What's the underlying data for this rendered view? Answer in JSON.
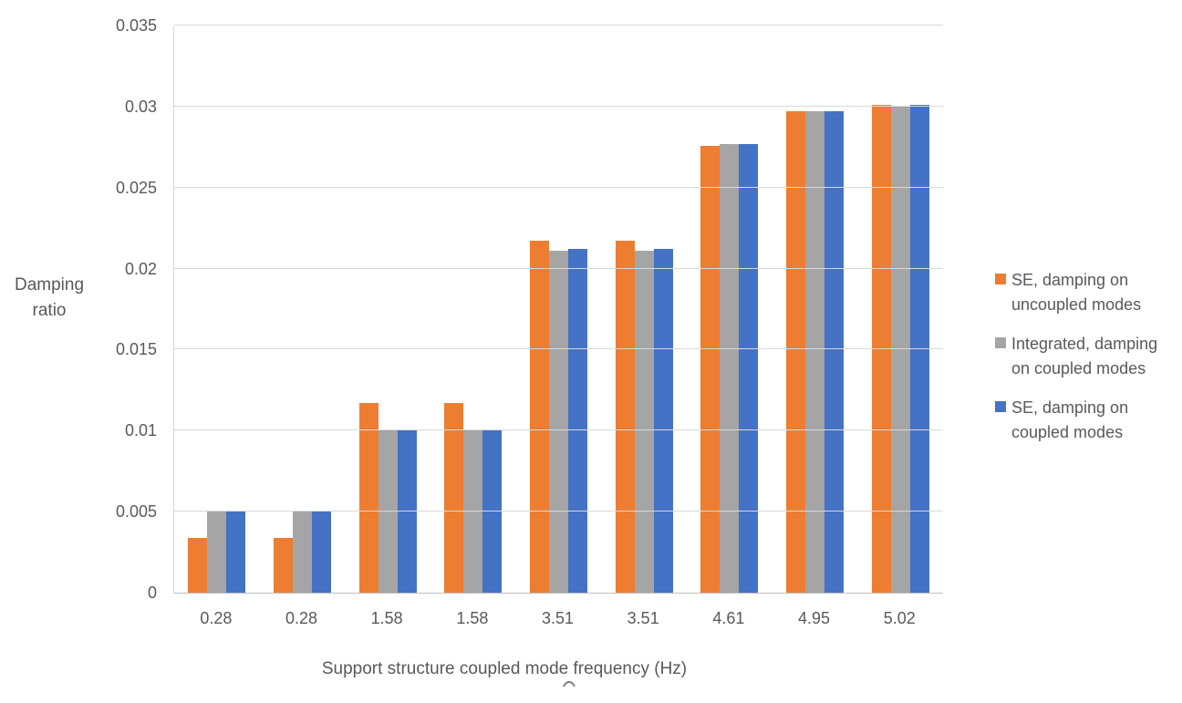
{
  "chart_data": {
    "type": "bar",
    "title": "",
    "xlabel": "Support structure coupled mode frequency (Hz)",
    "ylabel": "Damping ratio",
    "categories": [
      "0.28",
      "0.28",
      "1.58",
      "1.58",
      "3.51",
      "3.51",
      "4.61",
      "4.95",
      "5.02"
    ],
    "series": [
      {
        "name": "SE, damping on uncoupled modes",
        "color": "#ED7D31",
        "values": [
          0.0034,
          0.0034,
          0.0117,
          0.0117,
          0.0217,
          0.0217,
          0.0276,
          0.0297,
          0.0301
        ]
      },
      {
        "name": "Integrated, damping on coupled modes",
        "color": "#A5A5A5",
        "values": [
          0.005,
          0.005,
          0.01,
          0.01,
          0.0211,
          0.0211,
          0.0277,
          0.0297,
          0.03
        ]
      },
      {
        "name": "SE, damping on coupled modes",
        "color": "#4472C4",
        "values": [
          0.005,
          0.005,
          0.01,
          0.01,
          0.0212,
          0.0212,
          0.0277,
          0.0297,
          0.0301
        ]
      }
    ],
    "ylim": [
      0,
      0.035
    ],
    "yticks": [
      {
        "value": 0,
        "label": "0"
      },
      {
        "value": 0.005,
        "label": "0.005"
      },
      {
        "value": 0.01,
        "label": "0.01"
      },
      {
        "value": 0.015,
        "label": "0.015"
      },
      {
        "value": 0.02,
        "label": "0.02"
      },
      {
        "value": 0.025,
        "label": "0.025"
      },
      {
        "value": 0.03,
        "label": "0.03"
      },
      {
        "value": 0.035,
        "label": "0.035"
      }
    ],
    "grid": true,
    "legend_position": "right"
  },
  "colors": {
    "gridline": "#D9D9D9",
    "axis_line": "#BFBFBF",
    "text": "#595959",
    "background": "#FFFFFF"
  }
}
